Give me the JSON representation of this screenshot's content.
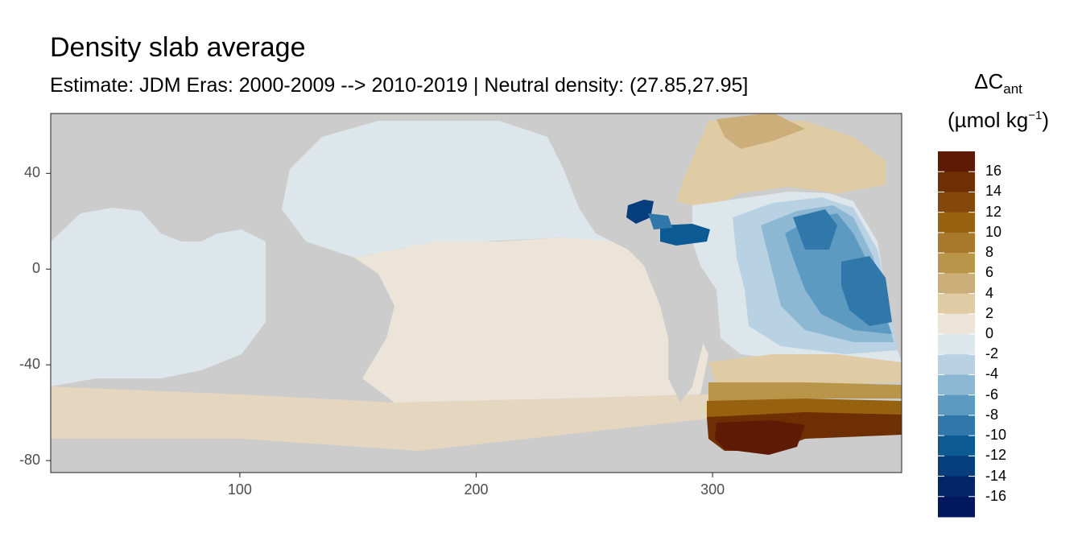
{
  "title": "Density slab average",
  "subtitle": "Estimate: JDM Eras: 2000-2009 --> 2010-2019 | Neutral density: (27.85,27.95]",
  "legend": {
    "title_main": "ΔC",
    "title_sub": "ant",
    "unit_open": "(µmol kg",
    "unit_sup": "−1",
    "unit_close": ")",
    "labels": [
      "16",
      "14",
      "12",
      "10",
      "8",
      "6",
      "4",
      "2",
      "0",
      "-2",
      "-4",
      "-6",
      "-8",
      "-10",
      "-12",
      "-14",
      "-16"
    ],
    "colors": [
      "#5e1a05",
      "#6f2f04",
      "#84480a",
      "#97620f",
      "#a8792a",
      "#b99549",
      "#cbae79",
      "#dfcba4",
      "#ece4d8",
      "#dde6eb",
      "#b8d2e3",
      "#8db8d3",
      "#5d9ac2",
      "#3178aa",
      "#0b5a93",
      "#063e7d",
      "#04256a",
      "#031660"
    ]
  },
  "axes": {
    "y_ticks": [
      "40",
      "0",
      "-40",
      "-80"
    ],
    "x_ticks": [
      "100",
      "200",
      "300"
    ]
  },
  "chart_data": {
    "type": "heatmap",
    "title": "Density slab average",
    "subtitle": "Estimate: JDM Eras: 2000-2009 --> 2010-2019 | Neutral density: (27.85,27.95]",
    "xlim": [
      20,
      380
    ],
    "ylim": [
      -85,
      65
    ],
    "x_ticks": [
      100,
      200,
      300
    ],
    "y_ticks": [
      40,
      0,
      -40,
      -80
    ],
    "grid": false,
    "legend_position": "right",
    "color_scale": {
      "breaks": [
        16,
        14,
        12,
        10,
        8,
        6,
        4,
        2,
        0,
        -2,
        -4,
        -6,
        -8,
        -10,
        -12,
        -14,
        -16
      ],
      "name": "ΔCant (µmol kg−1)"
    },
    "land_color": "#cccccc"
  }
}
